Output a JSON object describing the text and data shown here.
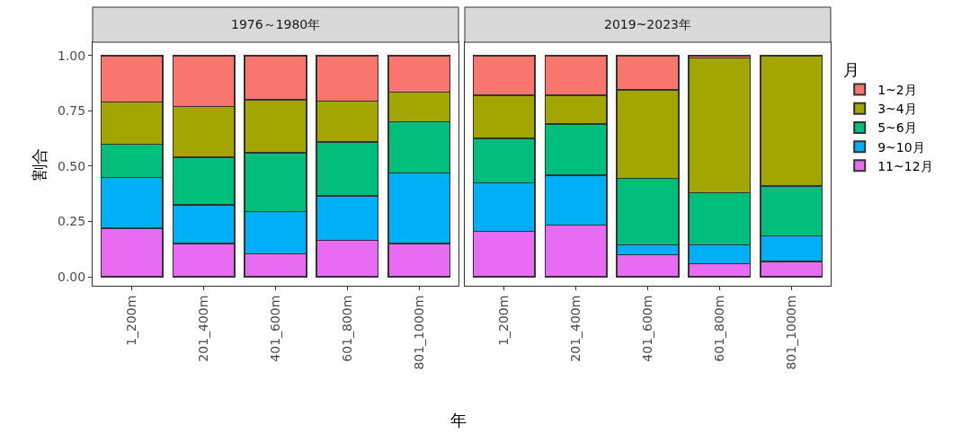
{
  "chart_data": [
    {
      "type": "bar",
      "title": "1976～1980年",
      "xlabel": "年",
      "ylabel": "割合",
      "stacked": true,
      "legend": false,
      "grid": false,
      "categories": [
        "1_200m",
        "201_400m",
        "401_600m",
        "601_800m",
        "801_1000m"
      ],
      "ylim": [
        -0.04,
        1.06
      ],
      "yticks": [
        {
          "value": 0,
          "label": "0.00"
        },
        {
          "value": 0.25,
          "label": "0.25"
        },
        {
          "value": 0.5,
          "label": "0.50"
        },
        {
          "value": 0.75,
          "label": "0.75"
        },
        {
          "value": 1,
          "label": "1.00"
        }
      ],
      "series": [
        {
          "color": "#e76bf3",
          "values": [
            0.22,
            0.15,
            0.105,
            0.165,
            0.15
          ]
        },
        {
          "color": "#00b0f6",
          "values": [
            0.23,
            0.175,
            0.19,
            0.2,
            0.32
          ]
        },
        {
          "color": "#00bf7d",
          "values": [
            0.15,
            0.215,
            0.265,
            0.245,
            0.23
          ]
        },
        {
          "color": "#a3a500",
          "values": [
            0.19,
            0.23,
            0.24,
            0.185,
            0.135
          ]
        },
        {
          "color": "#f8766d",
          "values": [
            0.21,
            0.23,
            0.2,
            0.205,
            0.165
          ]
        }
      ]
    },
    {
      "type": "bar",
      "title": "2019~2023年",
      "stacked": true,
      "legend": "right",
      "legend_title": "月",
      "grid": false,
      "tick_labels": "x",
      "categories": [
        "1_200m",
        "201_400m",
        "401_600m",
        "601_800m",
        "801_1000m"
      ],
      "ylim": [
        -0.04,
        1.06
      ],
      "series": [
        {
          "name": "11~12月",
          "color": "#e76bf3",
          "values": [
            0.205,
            0.235,
            0.1,
            0.06,
            0.07
          ]
        },
        {
          "name": "9~10月",
          "color": "#00b0f6",
          "values": [
            0.22,
            0.225,
            0.045,
            0.085,
            0.115
          ]
        },
        {
          "name": "5~6月",
          "color": "#00bf7d",
          "values": [
            0.2,
            0.23,
            0.3,
            0.235,
            0.225
          ]
        },
        {
          "name": "3~4月",
          "color": "#a3a500",
          "values": [
            0.195,
            0.13,
            0.4,
            0.61,
            0.59
          ]
        },
        {
          "name": "1~2月",
          "color": "#f8766d",
          "values": [
            0.18,
            0.18,
            0.155,
            0.01,
            null
          ]
        }
      ]
    }
  ]
}
